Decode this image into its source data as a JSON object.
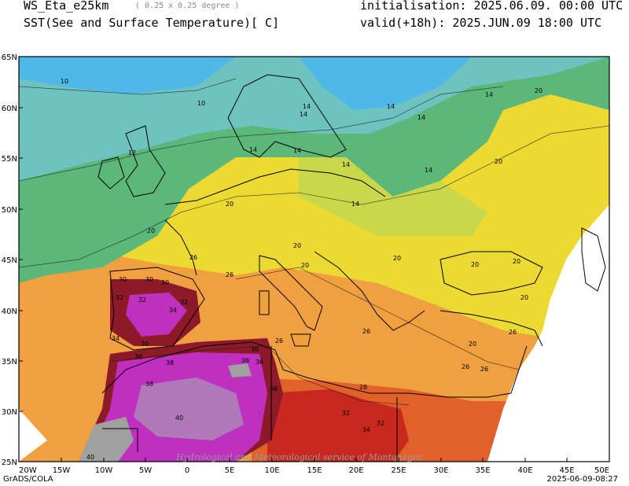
{
  "header": {
    "model": "WS_Eta_e25km",
    "resolution": "( 0.25 x 0.25 degree )",
    "variable": "SST(See and Surface Temperature)[ C]",
    "init": "initialisation: 2025.06.09. 00:00 UTC",
    "valid": "valid(+18h): 2025.JUN.09 18:00 UTC"
  },
  "axes": {
    "lat_ticks": [
      "65N",
      "60N",
      "55N",
      "50N",
      "45N",
      "40N",
      "35N",
      "30N",
      "25N"
    ],
    "lon_ticks": [
      "20W",
      "15W",
      "10W",
      "5W",
      "0",
      "5E",
      "10E",
      "15E",
      "20E",
      "25E",
      "30E",
      "35E",
      "40E",
      "45E",
      "50E"
    ]
  },
  "contour_labels": [
    "10",
    "10",
    "12",
    "14",
    "14",
    "14",
    "14",
    "14",
    "14",
    "14",
    "14",
    "14",
    "14",
    "20",
    "20",
    "20",
    "20",
    "20",
    "20",
    "20",
    "20",
    "20",
    "20",
    "20",
    "26",
    "26",
    "26",
    "26",
    "26",
    "26",
    "26",
    "28",
    "30",
    "30",
    "30",
    "30",
    "30",
    "32",
    "32",
    "32",
    "32",
    "32",
    "34",
    "34",
    "34",
    "36",
    "36",
    "36",
    "36",
    "38",
    "38",
    "40",
    "40"
  ],
  "footer": {
    "left": "GrADS/COLA",
    "right": "2025-06-09-08:27"
  },
  "watermark": "Hydrological and Meteorological service of Montenegro",
  "colors": {
    "cold_blue": "#4fb8e8",
    "teal": "#6ec3c0",
    "green": "#5cb87a",
    "yellow_green": "#c8d84a",
    "yellow": "#ecd932",
    "orange": "#f0a040",
    "red_orange": "#e2602a",
    "red": "#c8281e",
    "dark_red": "#8c1a28",
    "magenta": "#c030c0",
    "violet": "#b07ab8",
    "grey": "#a0a0a0"
  }
}
